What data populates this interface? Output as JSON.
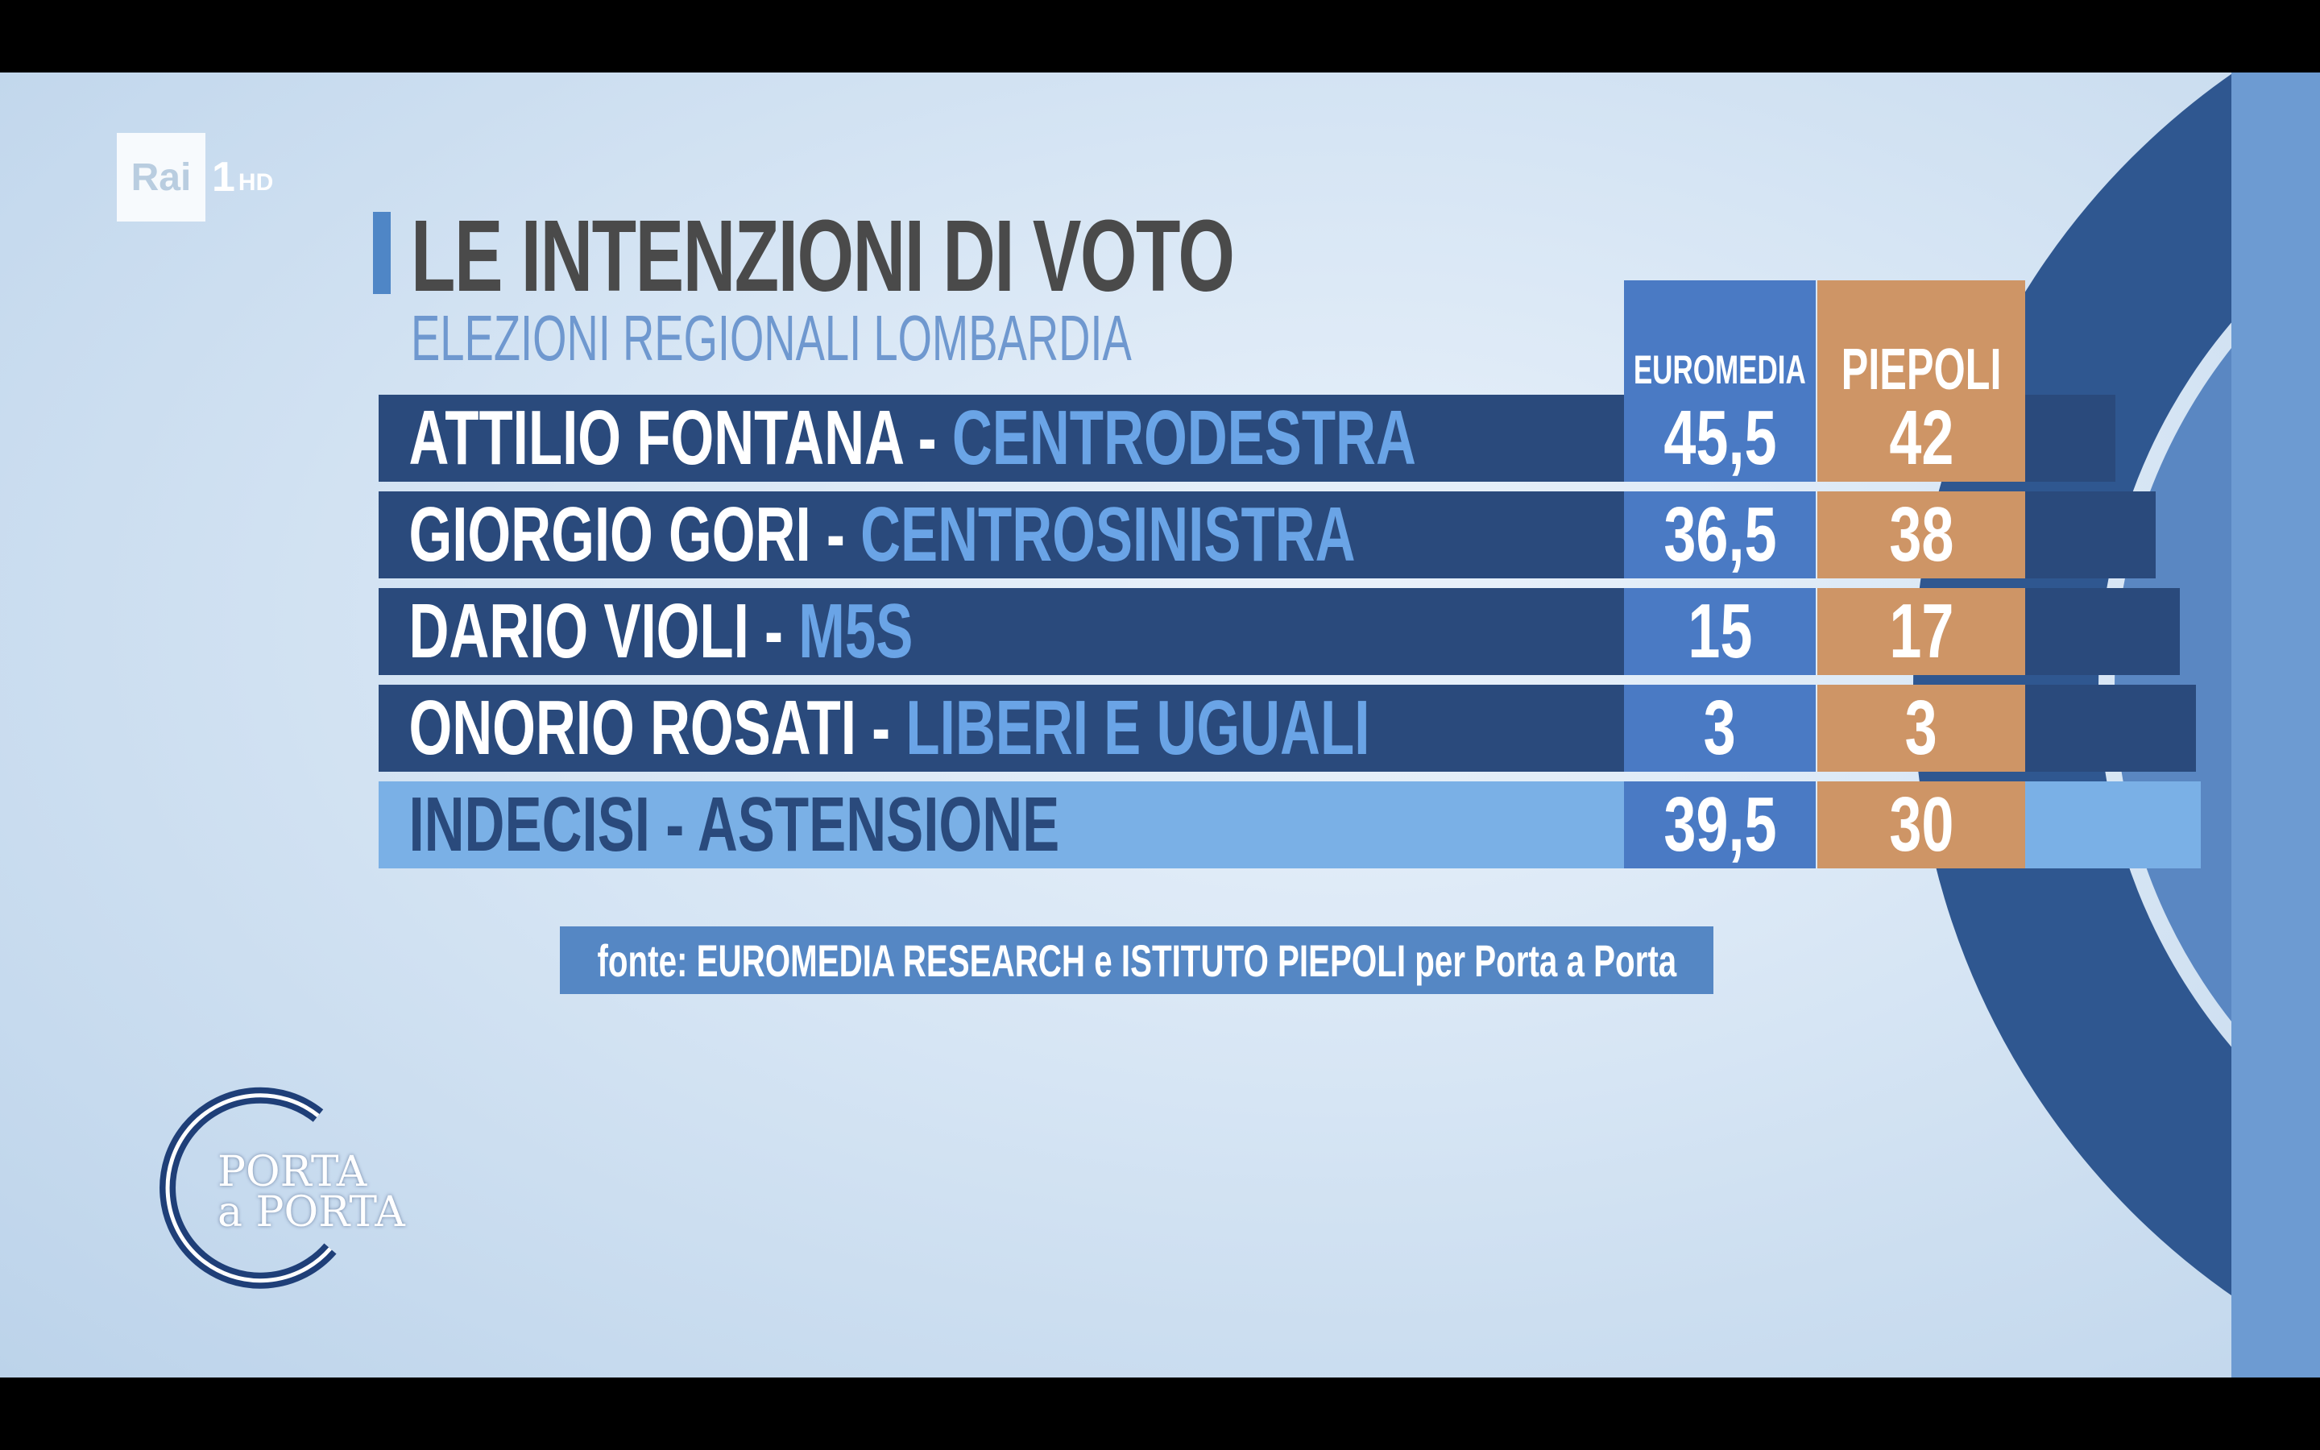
{
  "channel": {
    "brand": "Rai",
    "number": "1",
    "quality": "HD"
  },
  "header": {
    "title": "LE INTENZIONI DI VOTO",
    "subtitle": "ELEZIONI REGIONALI LOMBARDIA"
  },
  "columns": [
    "EUROMEDIA",
    "PIEPOLI"
  ],
  "rows": [
    {
      "name": "ATTILIO FONTANA",
      "separator": "-",
      "party": "CENTRODESTRA",
      "euromedia": "45,5",
      "piepoli": "42"
    },
    {
      "name": "GIORGIO GORI",
      "separator": "-",
      "party": "CENTROSINISTRA",
      "euromedia": "36,5",
      "piepoli": "38"
    },
    {
      "name": "DARIO VIOLI",
      "separator": "-",
      "party": "M5S",
      "euromedia": "15",
      "piepoli": "17"
    },
    {
      "name": "ONORIO ROSATI",
      "separator": "-",
      "party": "LIBERI E UGUALI",
      "euromedia": "3",
      "piepoli": "3"
    },
    {
      "name": "INDECISI - ASTENSIONE",
      "separator": "",
      "party": "",
      "euromedia": "39,5",
      "piepoli": "30"
    }
  ],
  "source": "fonte: EUROMEDIA RESEARCH e ISTITUTO PIEPOLI per Porta a Porta",
  "show": {
    "line1": "PORTA",
    "line2": "a PORTA"
  },
  "colors": {
    "row_dark": "#2a4a7c",
    "row_light": "#7ab0e6",
    "euromedia": "#4a7ac4",
    "piepoli": "#ce9566",
    "party_text": "#6aa4e6"
  }
}
